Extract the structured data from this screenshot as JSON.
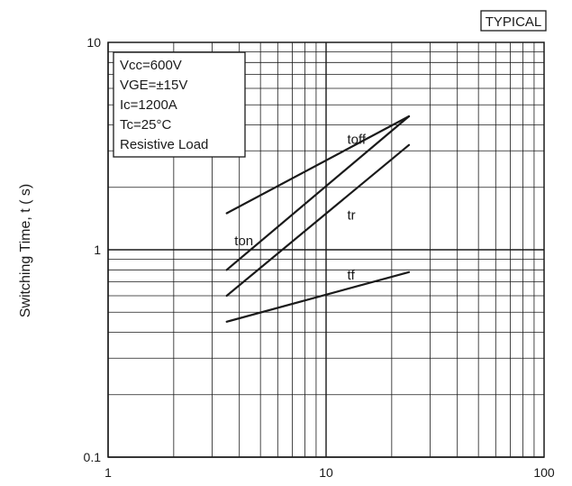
{
  "chart_data": {
    "type": "line",
    "badge": "TYPICAL",
    "ylabel": "Switching Time, t ( s)",
    "xlabel": "",
    "x_scale": "log",
    "y_scale": "log",
    "xlim": [
      1,
      100
    ],
    "ylim": [
      0.1,
      10
    ],
    "grid": true,
    "x_ticks": [
      {
        "value": 1,
        "label": "1"
      },
      {
        "value": 10,
        "label": "10"
      },
      {
        "value": 100,
        "label": "100"
      }
    ],
    "y_ticks": [
      {
        "value": 10,
        "label": "10"
      },
      {
        "value": 1,
        "label": "1"
      },
      {
        "value": 0.1,
        "label": "0.1"
      }
    ],
    "conditions": [
      "Vcc=600V",
      "VGE=±15V",
      "Ic=1200A",
      "Tc=25°C",
      "Resistive Load"
    ],
    "series": [
      {
        "name": "toff",
        "x": [
          3.5,
          24
        ],
        "y": [
          1.5,
          4.4
        ],
        "label_at": [
          12.5,
          3.25
        ]
      },
      {
        "name": "ton",
        "x": [
          3.5,
          24
        ],
        "y": [
          0.8,
          4.4
        ],
        "label_at": [
          3.8,
          1.05
        ]
      },
      {
        "name": "tr",
        "x": [
          3.5,
          24
        ],
        "y": [
          0.6,
          3.2
        ],
        "label_at": [
          12.5,
          1.4
        ]
      },
      {
        "name": "tf",
        "x": [
          3.5,
          24
        ],
        "y": [
          0.45,
          0.78
        ],
        "label_at": [
          12.5,
          0.72
        ]
      }
    ],
    "colors": {
      "line": "#1a1a1a",
      "grid": "#1a1a1a",
      "background": "#ffffff"
    }
  }
}
